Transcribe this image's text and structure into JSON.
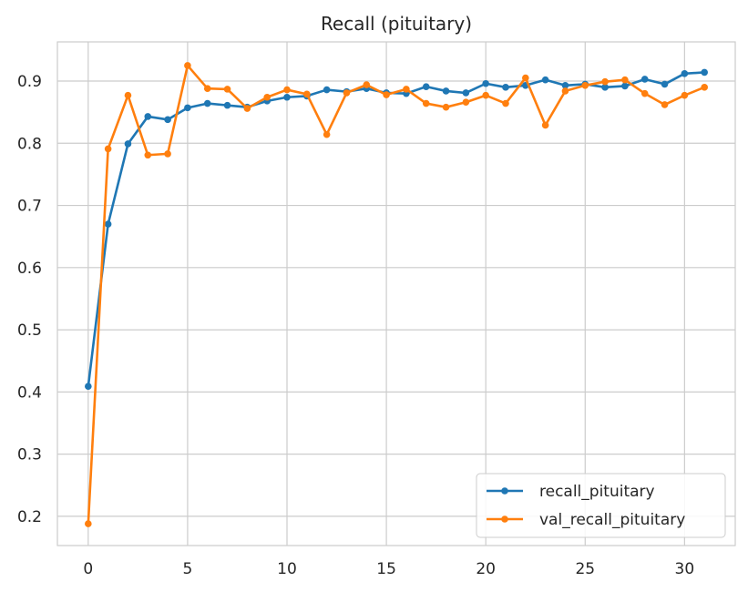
{
  "chart_data": {
    "type": "line",
    "title": "Recall (pituitary)",
    "xlabel": "",
    "ylabel": "",
    "xlim": [
      -1.55,
      32.55
    ],
    "ylim": [
      0.153,
      0.963
    ],
    "xticks": [
      0,
      5,
      10,
      15,
      20,
      25,
      30
    ],
    "yticks": [
      0.2,
      0.3,
      0.4,
      0.5,
      0.6,
      0.7,
      0.8,
      0.9
    ],
    "grid": true,
    "legend_position": "lower-right",
    "x": [
      0,
      1,
      2,
      3,
      4,
      5,
      6,
      7,
      8,
      9,
      10,
      11,
      12,
      13,
      14,
      15,
      16,
      17,
      18,
      19,
      20,
      21,
      22,
      23,
      24,
      25,
      26,
      27,
      28,
      29,
      30,
      31
    ],
    "series": [
      {
        "name": "recall_pituitary",
        "color": "#1f77b4",
        "values": [
          0.409,
          0.67,
          0.799,
          0.843,
          0.838,
          0.857,
          0.864,
          0.861,
          0.858,
          0.868,
          0.874,
          0.876,
          0.886,
          0.883,
          0.888,
          0.881,
          0.88,
          0.891,
          0.884,
          0.881,
          0.896,
          0.89,
          0.893,
          0.902,
          0.893,
          0.895,
          0.89,
          0.892,
          0.903,
          0.895,
          0.912,
          0.914
        ]
      },
      {
        "name": "val_recall_pituitary",
        "color": "#ff7f0e",
        "values": [
          0.188,
          0.791,
          0.877,
          0.781,
          0.783,
          0.925,
          0.888,
          0.887,
          0.856,
          0.874,
          0.886,
          0.879,
          0.814,
          0.881,
          0.894,
          0.878,
          0.887,
          0.864,
          0.858,
          0.866,
          0.877,
          0.864,
          0.905,
          0.829,
          0.884,
          0.893,
          0.899,
          0.902,
          0.88,
          0.862,
          0.877,
          0.89
        ]
      }
    ]
  }
}
